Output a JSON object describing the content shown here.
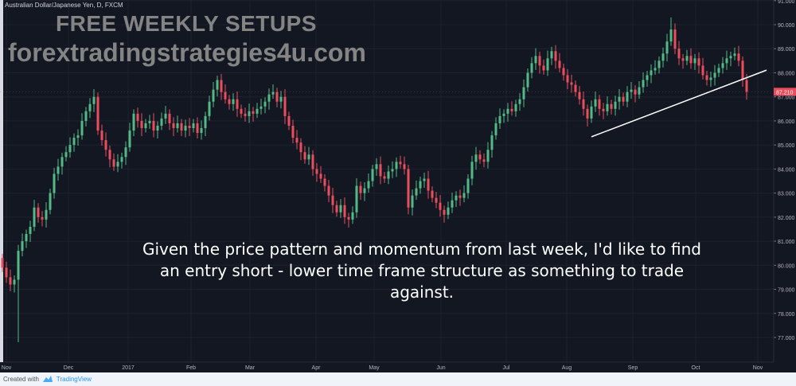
{
  "header": {
    "symbol_label": "Australian Dollar/Japanese Yen, D, FXCM",
    "watermark_line1": "FREE WEEKLY SETUPS",
    "watermark_line2": "forextradingstrategies4u.com"
  },
  "annotation": "Given the price pattern and momentum from last week, I'd like to find an entry short - lower time frame structure as something to trade against.",
  "footer": {
    "created_with": "Created with",
    "brand": "TradingView"
  },
  "colors": {
    "background": "#131722",
    "grid": "#1e2230",
    "up": "#26a69a",
    "up_body": "#53b987",
    "down": "#eb4d5c",
    "trendline": "#ffffff",
    "last_price_bg": "#eb4d5c"
  },
  "chart_data": {
    "type": "candlestick",
    "title": "Australian Dollar/Japanese Yen, D, FXCM",
    "ylim": [
      76.0,
      91.2
    ],
    "y_ticks": [
      "77.000",
      "78.000",
      "79.000",
      "80.000",
      "81.000",
      "82.000",
      "83.000",
      "84.000",
      "85.000",
      "86.000",
      "87.000",
      "88.000",
      "89.000",
      "90.000",
      "91.000"
    ],
    "x_ticks": [
      {
        "label": "Nov",
        "index": 1
      },
      {
        "label": "Dec",
        "index": 16.6
      },
      {
        "label": "2017",
        "index": 31.6
      },
      {
        "label": "Feb",
        "index": 47.4
      },
      {
        "label": "Mar",
        "index": 62.2
      },
      {
        "label": "Apr",
        "index": 78.8
      },
      {
        "label": "May",
        "index": 93.4
      },
      {
        "label": "Jun",
        "index": 110.2
      },
      {
        "label": "Jul",
        "index": 126.6
      },
      {
        "label": "Aug",
        "index": 141.8
      },
      {
        "label": "Sep",
        "index": 158.4
      },
      {
        "label": "Oct",
        "index": 174.2
      },
      {
        "label": "Nov",
        "index": 189.8
      }
    ],
    "last_price": "87.210",
    "grid": true,
    "open_first": 80.3,
    "closes": [
      79.9,
      79.5,
      79.2,
      79.4,
      80.6,
      81.0,
      81.3,
      81.6,
      82.4,
      82.0,
      81.9,
      82.3,
      83.0,
      83.8,
      84.1,
      84.5,
      84.7,
      85.0,
      85.3,
      85.4,
      86.0,
      86.4,
      86.7,
      87.0,
      85.6,
      85.2,
      84.8,
      84.4,
      84.1,
      84.3,
      84.5,
      84.9,
      85.6,
      86.3,
      86.0,
      85.7,
      85.9,
      86.0,
      85.6,
      85.8,
      86.1,
      86.3,
      85.9,
      85.7,
      85.9,
      85.6,
      85.8,
      85.7,
      85.9,
      85.5,
      85.7,
      86.2,
      86.8,
      87.3,
      87.7,
      87.2,
      86.9,
      86.7,
      86.9,
      86.5,
      86.3,
      86.2,
      86.4,
      86.3,
      86.5,
      86.6,
      86.8,
      87.1,
      87.2,
      86.8,
      87.0,
      86.2,
      85.8,
      85.3,
      85.1,
      84.7,
      84.4,
      84.6,
      84.0,
      83.8,
      83.6,
      83.3,
      82.9,
      82.5,
      82.2,
      82.5,
      82.0,
      81.9,
      82.2,
      83.3,
      83.0,
      83.2,
      83.5,
      84.0,
      84.2,
      83.7,
      83.6,
      83.9,
      84.0,
      84.3,
      84.2,
      84.0,
      82.4,
      82.9,
      83.2,
      83.5,
      83.6,
      83.1,
      82.8,
      82.6,
      82.3,
      82.1,
      82.4,
      82.7,
      82.9,
      82.8,
      83.0,
      83.6,
      84.3,
      84.6,
      84.4,
      84.3,
      84.8,
      85.4,
      85.9,
      86.2,
      86.3,
      86.5,
      86.4,
      86.7,
      86.9,
      87.4,
      88.0,
      88.4,
      88.7,
      88.3,
      88.1,
      88.6,
      88.9,
      88.5,
      88.2,
      87.9,
      87.6,
      87.5,
      87.2,
      86.9,
      86.5,
      86.1,
      86.6,
      86.9,
      86.5,
      86.4,
      86.7,
      86.5,
      86.8,
      87.0,
      86.8,
      87.2,
      87.3,
      87.1,
      87.4,
      87.7,
      87.9,
      88.1,
      88.2,
      88.5,
      88.8,
      89.3,
      89.8,
      89.0,
      88.6,
      88.5,
      88.7,
      88.4,
      88.6,
      88.3,
      87.9,
      87.7,
      87.8,
      88.0,
      88.2,
      88.4,
      88.6,
      88.7,
      88.8,
      88.5,
      87.7,
      87.21
    ],
    "wick_extremes": [
      {
        "index": 4,
        "low": 76.8
      },
      {
        "index": 168,
        "high": 90.3
      }
    ],
    "trendline": {
      "start": {
        "index": 148,
        "price": 85.34
      },
      "end": {
        "index": 192,
        "price": 88.11
      }
    }
  }
}
